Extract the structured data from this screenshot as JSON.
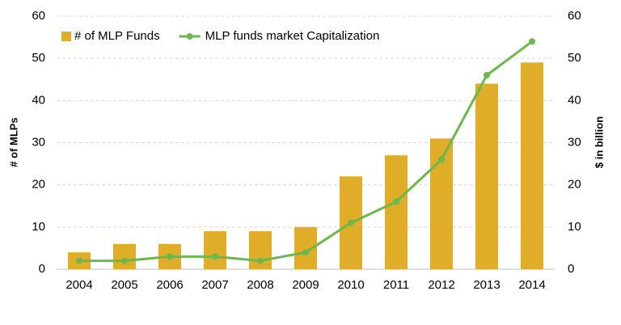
{
  "chart_data": {
    "type": "bar",
    "categories": [
      "2004",
      "2005",
      "2006",
      "2007",
      "2008",
      "2009",
      "2010",
      "2011",
      "2012",
      "2013",
      "2014"
    ],
    "series": [
      {
        "name": "# of MLP Funds",
        "color": "#e0ad29",
        "type": "bar",
        "values": [
          4,
          6,
          6,
          9,
          9,
          10,
          22,
          27,
          31,
          44,
          49
        ]
      },
      {
        "name": "MLP funds market Capitalization",
        "color": "#6cb84f",
        "type": "line",
        "axis": "y2",
        "values": [
          2,
          2,
          3,
          3,
          2,
          4,
          11,
          16,
          26,
          46,
          54
        ]
      }
    ],
    "y_label": "# of MLPs",
    "y2_label": "$ in billion",
    "ylim": [
      0,
      60
    ],
    "yticks": [
      0,
      10,
      20,
      30,
      40,
      50,
      60
    ],
    "y2lim": [
      0,
      60
    ],
    "y2ticks": [
      0,
      10,
      20,
      30,
      40,
      50,
      60
    ],
    "grid": true
  }
}
